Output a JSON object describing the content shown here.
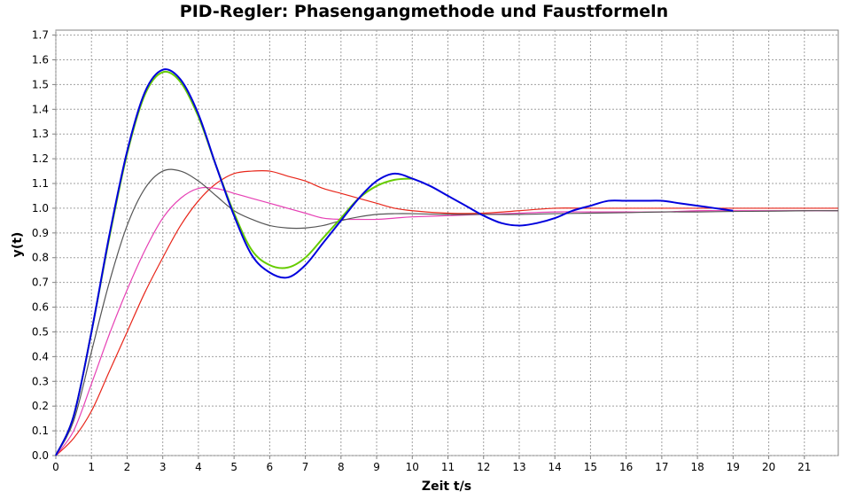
{
  "chart_data": {
    "type": "line",
    "title": "PID-Regler: Phasengangmethode und Faustformeln",
    "xlabel": "Zeit t/s",
    "ylabel": "y(t)",
    "xlim": [
      0,
      21.95
    ],
    "ylim": [
      0,
      1.72
    ],
    "grid": true,
    "legend": "none",
    "x_ticks": [
      "0",
      "1",
      "2",
      "3",
      "4",
      "5",
      "6",
      "7",
      "8",
      "9",
      "10",
      "11",
      "12",
      "13",
      "14",
      "15",
      "16",
      "17",
      "18",
      "19",
      "20",
      "21"
    ],
    "y_ticks": [
      "0.0",
      "0.1",
      "0.2",
      "0.3",
      "0.4",
      "0.5",
      "0.6",
      "0.7",
      "0.8",
      "0.9",
      "1.0",
      "1.1",
      "1.2",
      "1.3",
      "1.4",
      "1.5",
      "1.6",
      "1.7"
    ],
    "series": [
      {
        "color": "#e8261a",
        "x": [
          0,
          0.5,
          1,
          1.5,
          2,
          2.5,
          3,
          3.5,
          4,
          4.5,
          5,
          5.5,
          6,
          6.5,
          7,
          7.5,
          8,
          8.5,
          9,
          9.5,
          10,
          11,
          12,
          13,
          14,
          15,
          16,
          17,
          18,
          19,
          20,
          21,
          21.95
        ],
        "y": [
          0,
          0.07,
          0.18,
          0.34,
          0.5,
          0.66,
          0.8,
          0.93,
          1.03,
          1.1,
          1.14,
          1.15,
          1.15,
          1.13,
          1.11,
          1.08,
          1.06,
          1.04,
          1.02,
          1.0,
          0.99,
          0.98,
          0.98,
          0.99,
          1.0,
          1.0,
          1.0,
          1.0,
          1.0,
          1.0,
          1.0,
          1.0,
          1.0
        ]
      },
      {
        "color": "#e640b4",
        "x": [
          0,
          0.5,
          1,
          1.5,
          2,
          2.5,
          3,
          3.5,
          4,
          4.5,
          5,
          5.5,
          6,
          6.5,
          7,
          7.5,
          8,
          8.5,
          9,
          9.5,
          10,
          11,
          12,
          13,
          14,
          15,
          16,
          17,
          18,
          19,
          20,
          21,
          21.95
        ],
        "y": [
          0,
          0.1,
          0.29,
          0.49,
          0.67,
          0.83,
          0.96,
          1.04,
          1.08,
          1.08,
          1.06,
          1.04,
          1.02,
          1.0,
          0.98,
          0.96,
          0.955,
          0.955,
          0.955,
          0.96,
          0.965,
          0.97,
          0.975,
          0.98,
          0.985,
          0.985,
          0.985,
          0.985,
          0.99,
          0.99,
          0.99,
          0.99,
          0.99
        ]
      },
      {
        "color": "#555555",
        "x": [
          0,
          0.5,
          1,
          1.5,
          2,
          2.5,
          3,
          3.5,
          4,
          4.5,
          5,
          5.5,
          6,
          6.5,
          7,
          7.5,
          8,
          8.5,
          9,
          9.5,
          10,
          11,
          12,
          13,
          14,
          15,
          16,
          17,
          18,
          19,
          20,
          21,
          21.95
        ],
        "y": [
          0,
          0.14,
          0.42,
          0.7,
          0.93,
          1.08,
          1.15,
          1.15,
          1.11,
          1.05,
          0.99,
          0.955,
          0.93,
          0.92,
          0.92,
          0.93,
          0.95,
          0.965,
          0.975,
          0.978,
          0.978,
          0.975,
          0.975,
          0.975,
          0.978,
          0.98,
          0.982,
          0.985,
          0.985,
          0.987,
          0.988,
          0.99,
          0.99
        ]
      },
      {
        "color": "#66cc00",
        "x": [
          0,
          0.5,
          1,
          1.5,
          2,
          2.5,
          3,
          3.5,
          4,
          4.5,
          5,
          5.5,
          6,
          6.5,
          7,
          7.5,
          8,
          8.5,
          9,
          9.5,
          10
        ],
        "y": [
          0,
          0.16,
          0.5,
          0.88,
          1.22,
          1.46,
          1.55,
          1.51,
          1.37,
          1.17,
          0.98,
          0.83,
          0.77,
          0.76,
          0.8,
          0.88,
          0.96,
          1.04,
          1.09,
          1.115,
          1.12
        ]
      },
      {
        "color": "#0000dd",
        "x": [
          0,
          0.5,
          1,
          1.5,
          2,
          2.5,
          3,
          3.5,
          4,
          4.5,
          5,
          5.5,
          6,
          6.5,
          7,
          7.5,
          8,
          8.5,
          9,
          9.5,
          10,
          10.5,
          11,
          11.5,
          12,
          12.5,
          13,
          13.5,
          14,
          14.5,
          15,
          15.5,
          16,
          16.5,
          17,
          17.5,
          18,
          18.5,
          19
        ],
        "y": [
          0,
          0.16,
          0.5,
          0.89,
          1.23,
          1.47,
          1.56,
          1.52,
          1.38,
          1.17,
          0.97,
          0.81,
          0.74,
          0.72,
          0.77,
          0.86,
          0.95,
          1.04,
          1.11,
          1.14,
          1.12,
          1.09,
          1.05,
          1.01,
          0.97,
          0.94,
          0.93,
          0.94,
          0.96,
          0.99,
          1.01,
          1.03,
          1.03,
          1.03,
          1.03,
          1.02,
          1.01,
          1.0,
          0.99
        ]
      }
    ]
  }
}
